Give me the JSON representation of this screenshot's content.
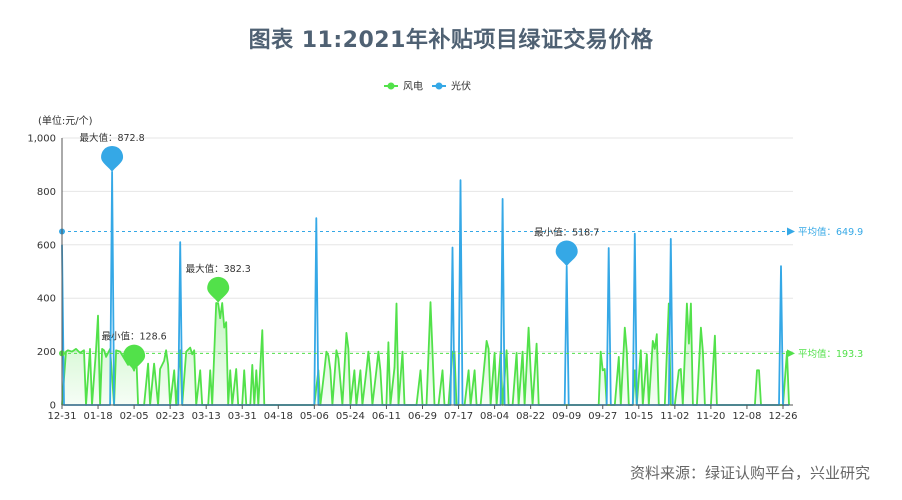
{
  "title": "图表 11:2021年补贴项目绿证交易价格",
  "source": "资料来源：绿证认购平台，兴业研究",
  "colors": {
    "wind": "#52e14a",
    "solar": "#35a8e6"
  },
  "chart_data": {
    "type": "line",
    "unit_label": "(单位:元/个)",
    "ylim": [
      0,
      1000
    ],
    "yticks": [
      "0",
      "200",
      "400",
      "600",
      "800",
      "1,000"
    ],
    "xticks": [
      "12-31",
      "01-18",
      "02-05",
      "02-23",
      "03-13",
      "03-31",
      "04-18",
      "05-06",
      "05-24",
      "06-11",
      "06-29",
      "07-17",
      "08-04",
      "08-22",
      "09-09",
      "09-27",
      "10-15",
      "11-02",
      "11-20",
      "12-08",
      "12-26"
    ],
    "legend": [
      "风电",
      "光伏"
    ],
    "legend_position": "top-center",
    "grid": true,
    "series": [
      {
        "name": "风电",
        "color": "#52e14a",
        "fill": true,
        "points": [
          [
            "12-31",
            0
          ],
          [
            "01-02",
            200
          ],
          [
            "01-03",
            205
          ],
          [
            "01-05",
            200
          ],
          [
            "01-07",
            210
          ],
          [
            "01-09",
            195
          ],
          [
            "01-11",
            205
          ],
          [
            "01-12",
            0
          ],
          [
            "01-14",
            210
          ],
          [
            "01-15",
            0
          ],
          [
            "01-17",
            205
          ],
          [
            "01-18",
            335
          ],
          [
            "01-19",
            0
          ],
          [
            "01-20",
            210
          ],
          [
            "01-21",
            205
          ],
          [
            "01-22",
            180
          ],
          [
            "01-24",
            210
          ],
          [
            "01-26",
            0
          ],
          [
            "01-27",
            205
          ],
          [
            "01-29",
            200
          ],
          [
            "01-31",
            175
          ],
          [
            "02-02",
            150
          ],
          [
            "02-03",
            165
          ],
          [
            "02-05",
            129
          ],
          [
            "02-06",
            200
          ],
          [
            "02-07",
            0
          ],
          [
            "02-09",
            0
          ],
          [
            "02-10",
            0
          ],
          [
            "02-12",
            155
          ],
          [
            "02-13",
            0
          ],
          [
            "02-15",
            155
          ],
          [
            "02-17",
            0
          ],
          [
            "02-18",
            135
          ],
          [
            "02-20",
            165
          ],
          [
            "02-21",
            205
          ],
          [
            "02-22",
            150
          ],
          [
            "02-23",
            0
          ],
          [
            "02-25",
            130
          ],
          [
            "02-26",
            0
          ],
          [
            "02-28",
            205
          ],
          [
            "03-01",
            0
          ],
          [
            "03-03",
            200
          ],
          [
            "03-05",
            215
          ],
          [
            "03-06",
            190
          ],
          [
            "03-07",
            205
          ],
          [
            "03-08",
            0
          ],
          [
            "03-10",
            130
          ],
          [
            "03-11",
            0
          ],
          [
            "03-13",
            0
          ],
          [
            "03-14",
            0
          ],
          [
            "03-15",
            130
          ],
          [
            "03-16",
            0
          ],
          [
            "03-18",
            382
          ],
          [
            "03-19",
            380
          ],
          [
            "03-20",
            325
          ],
          [
            "03-21",
            382
          ],
          [
            "03-22",
            290
          ],
          [
            "03-23",
            310
          ],
          [
            "03-24",
            0
          ],
          [
            "03-25",
            130
          ],
          [
            "03-26",
            0
          ],
          [
            "03-28",
            135
          ],
          [
            "03-29",
            0
          ],
          [
            "03-31",
            0
          ],
          [
            "04-01",
            130
          ],
          [
            "04-02",
            0
          ],
          [
            "04-04",
            0
          ],
          [
            "04-05",
            150
          ],
          [
            "04-06",
            0
          ],
          [
            "04-07",
            130
          ],
          [
            "04-08",
            0
          ],
          [
            "04-10",
            280
          ],
          [
            "04-11",
            0
          ],
          [
            "04-12",
            0
          ],
          [
            "04-14",
            0
          ],
          [
            "04-16",
            0
          ],
          [
            "04-18",
            0
          ],
          [
            "04-22",
            0
          ],
          [
            "04-26",
            0
          ],
          [
            "04-30",
            0
          ],
          [
            "05-04",
            0
          ],
          [
            "05-06",
            0
          ],
          [
            "05-08",
            130
          ],
          [
            "05-09",
            0
          ],
          [
            "05-11",
            130
          ],
          [
            "05-12",
            200
          ],
          [
            "05-13",
            185
          ],
          [
            "05-14",
            130
          ],
          [
            "05-15",
            0
          ],
          [
            "05-17",
            205
          ],
          [
            "05-18",
            175
          ],
          [
            "05-20",
            0
          ],
          [
            "05-22",
            270
          ],
          [
            "05-23",
            210
          ],
          [
            "05-24",
            0
          ],
          [
            "05-26",
            130
          ],
          [
            "05-27",
            0
          ],
          [
            "05-29",
            130
          ],
          [
            "05-30",
            0
          ],
          [
            "06-01",
            130
          ],
          [
            "06-02",
            200
          ],
          [
            "06-03",
            120
          ],
          [
            "06-04",
            0
          ],
          [
            "06-06",
            130
          ],
          [
            "06-07",
            200
          ],
          [
            "06-08",
            130
          ],
          [
            "06-09",
            0
          ],
          [
            "06-11",
            0
          ],
          [
            "06-12",
            235
          ],
          [
            "06-13",
            0
          ],
          [
            "06-15",
            140
          ],
          [
            "06-16",
            380
          ],
          [
            "06-17",
            0
          ],
          [
            "06-19",
            200
          ],
          [
            "06-20",
            0
          ],
          [
            "06-22",
            0
          ],
          [
            "06-26",
            0
          ],
          [
            "06-28",
            130
          ],
          [
            "06-29",
            0
          ],
          [
            "07-01",
            0
          ],
          [
            "07-03",
            385
          ],
          [
            "07-04",
            200
          ],
          [
            "07-05",
            0
          ],
          [
            "07-07",
            0
          ],
          [
            "07-09",
            130
          ],
          [
            "07-10",
            0
          ],
          [
            "07-12",
            0
          ],
          [
            "07-14",
            200
          ],
          [
            "07-15",
            200
          ],
          [
            "07-16",
            0
          ],
          [
            "07-20",
            0
          ],
          [
            "07-22",
            130
          ],
          [
            "07-23",
            0
          ],
          [
            "07-25",
            130
          ],
          [
            "07-26",
            0
          ],
          [
            "07-28",
            0
          ],
          [
            "07-31",
            240
          ],
          [
            "08-01",
            210
          ],
          [
            "08-02",
            0
          ],
          [
            "08-04",
            195
          ],
          [
            "08-05",
            0
          ],
          [
            "08-07",
            200
          ],
          [
            "08-08",
            0
          ],
          [
            "08-10",
            205
          ],
          [
            "08-11",
            0
          ],
          [
            "08-13",
            0
          ],
          [
            "08-15",
            195
          ],
          [
            "08-16",
            0
          ],
          [
            "08-18",
            200
          ],
          [
            "08-19",
            0
          ],
          [
            "08-21",
            290
          ],
          [
            "08-22",
            130
          ],
          [
            "08-23",
            0
          ],
          [
            "08-25",
            230
          ],
          [
            "08-26",
            0
          ],
          [
            "08-28",
            0
          ],
          [
            "09-01",
            0
          ],
          [
            "09-05",
            0
          ],
          [
            "09-09",
            0
          ],
          [
            "09-13",
            0
          ],
          [
            "09-17",
            0
          ],
          [
            "09-21",
            0
          ],
          [
            "09-25",
            0
          ],
          [
            "09-26",
            200
          ],
          [
            "09-27",
            130
          ],
          [
            "09-28",
            135
          ],
          [
            "09-29",
            0
          ],
          [
            "10-01",
            0
          ],
          [
            "10-03",
            0
          ],
          [
            "10-05",
            180
          ],
          [
            "10-06",
            0
          ],
          [
            "10-08",
            290
          ],
          [
            "10-09",
            200
          ],
          [
            "10-10",
            0
          ],
          [
            "10-12",
            0
          ],
          [
            "10-13",
            130
          ],
          [
            "10-14",
            0
          ],
          [
            "10-16",
            205
          ],
          [
            "10-17",
            0
          ],
          [
            "10-19",
            190
          ],
          [
            "10-20",
            0
          ],
          [
            "10-22",
            240
          ],
          [
            "10-23",
            210
          ],
          [
            "10-24",
            265
          ],
          [
            "10-25",
            0
          ],
          [
            "10-28",
            0
          ],
          [
            "10-30",
            380
          ],
          [
            "10-31",
            0
          ],
          [
            "11-02",
            0
          ],
          [
            "11-04",
            130
          ],
          [
            "11-05",
            135
          ],
          [
            "11-06",
            0
          ],
          [
            "11-08",
            380
          ],
          [
            "11-09",
            230
          ],
          [
            "11-10",
            380
          ],
          [
            "11-11",
            0
          ],
          [
            "11-13",
            0
          ],
          [
            "11-15",
            290
          ],
          [
            "11-16",
            200
          ],
          [
            "11-17",
            0
          ],
          [
            "11-20",
            0
          ],
          [
            "11-22",
            260
          ],
          [
            "11-23",
            0
          ],
          [
            "11-26",
            0
          ],
          [
            "11-30",
            0
          ],
          [
            "12-04",
            0
          ],
          [
            "12-08",
            0
          ],
          [
            "12-10",
            0
          ],
          [
            "12-12",
            0
          ],
          [
            "12-13",
            130
          ],
          [
            "12-14",
            130
          ],
          [
            "12-15",
            0
          ],
          [
            "12-18",
            0
          ],
          [
            "12-22",
            0
          ],
          [
            "12-26",
            0
          ],
          [
            "12-28",
            200
          ],
          [
            "12-29",
            0
          ]
        ],
        "max": {
          "label": "最大值：382.3",
          "x": "03-19",
          "value": 382.3
        },
        "min": {
          "label": "最小值：128.6",
          "x": "02-05",
          "value": 128.6
        },
        "average": {
          "label": "平均值：193.3",
          "value": 193.3
        }
      },
      {
        "name": "光伏",
        "color": "#35a8e6",
        "fill": false,
        "points": [
          [
            "12-31",
            600
          ],
          [
            "01-01",
            0
          ],
          [
            "01-24",
            0
          ],
          [
            "01-25",
            873
          ],
          [
            "01-26",
            0
          ],
          [
            "02-27",
            0
          ],
          [
            "02-28",
            610
          ],
          [
            "03-01",
            0
          ],
          [
            "05-06",
            0
          ],
          [
            "05-07",
            700
          ],
          [
            "05-08",
            0
          ],
          [
            "07-13",
            0
          ],
          [
            "07-14",
            590
          ],
          [
            "07-15",
            0
          ],
          [
            "07-17",
            0
          ],
          [
            "07-18",
            842
          ],
          [
            "07-19",
            0
          ],
          [
            "08-07",
            0
          ],
          [
            "08-08",
            772
          ],
          [
            "08-09",
            0
          ],
          [
            "09-08",
            0
          ],
          [
            "09-09",
            519
          ],
          [
            "09-10",
            0
          ],
          [
            "09-29",
            0
          ],
          [
            "09-30",
            588
          ],
          [
            "10-01",
            0
          ],
          [
            "10-12",
            0
          ],
          [
            "10-13",
            642
          ],
          [
            "10-14",
            0
          ],
          [
            "10-30",
            0
          ],
          [
            "10-31",
            622
          ],
          [
            "11-01",
            0
          ],
          [
            "12-24",
            0
          ],
          [
            "12-25",
            520
          ],
          [
            "12-26",
            0
          ],
          [
            "12-29",
            0
          ]
        ],
        "max": {
          "label": "最大值：872.8",
          "x": "01-25",
          "value": 872.8
        },
        "min": {
          "label": "最小值：518.7",
          "x": "09-09",
          "value": 518.7
        },
        "average": {
          "label": "平均值：649.9",
          "value": 649.9
        }
      }
    ]
  }
}
